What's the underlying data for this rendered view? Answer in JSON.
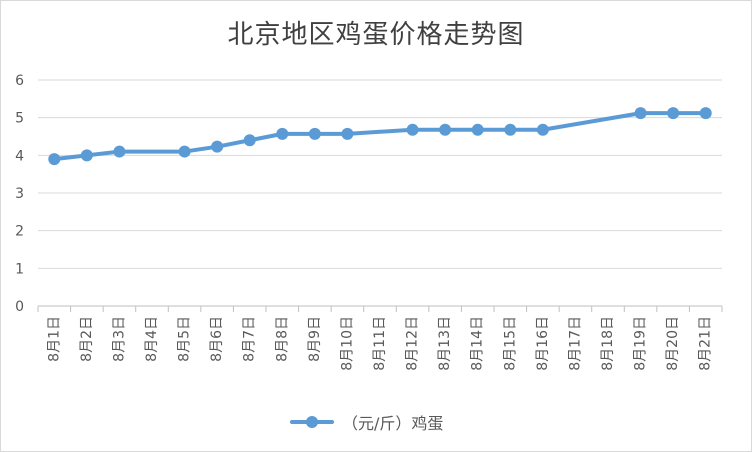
{
  "chart_data": {
    "type": "line",
    "title": "北京地区鸡蛋价格走势图",
    "categories": [
      "8月1日",
      "8月2日",
      "8月3日",
      "8月4日",
      "8月5日",
      "8月6日",
      "8月7日",
      "8月8日",
      "8月9日",
      "8月10日",
      "8月11日",
      "8月12日",
      "8月13日",
      "8月14日",
      "8月15日",
      "8月16日",
      "8月17日",
      "8月18日",
      "8月19日",
      "8月20日",
      "8月21日"
    ],
    "series": [
      {
        "name": "（元/斤）鸡蛋",
        "color": "#5b9bd5",
        "values": [
          3.9,
          4.0,
          4.1,
          null,
          4.1,
          4.23,
          4.4,
          4.57,
          4.57,
          4.57,
          null,
          4.68,
          4.68,
          4.68,
          4.68,
          4.68,
          null,
          null,
          5.12,
          5.12,
          5.12
        ]
      }
    ],
    "yticks": [
      "0",
      "1",
      "2",
      "3",
      "4",
      "5",
      "6"
    ],
    "ylim": [
      0,
      6
    ],
    "grid": true,
    "legend": "bottom"
  }
}
